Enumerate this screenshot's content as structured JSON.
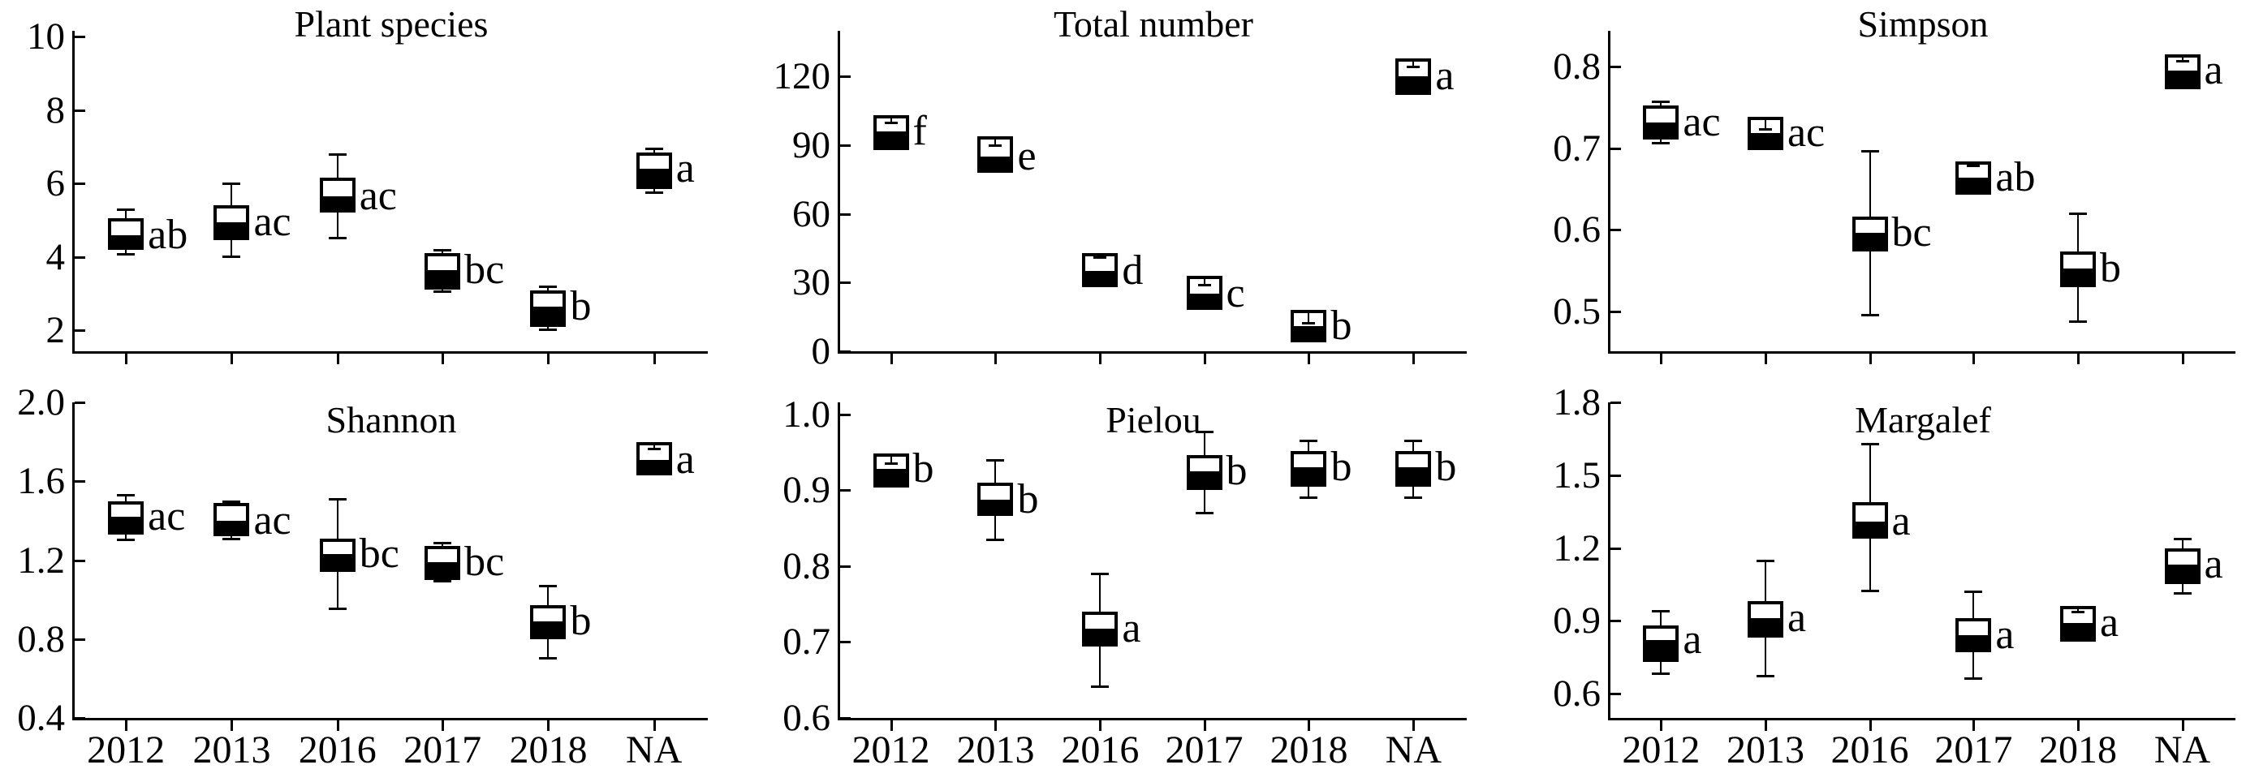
{
  "figure": {
    "background": "#ffffff",
    "ink": "#000000",
    "categories": [
      "2012",
      "2013",
      "2016",
      "2017",
      "2018",
      "NA"
    ]
  },
  "chart_data": [
    {
      "type": "box",
      "title": "Plant species",
      "categories": [
        "2012",
        "2013",
        "2016",
        "2017",
        "2018",
        "NA"
      ],
      "ylim": [
        1.43,
        10.16
      ],
      "yticks": [
        "2",
        "4",
        "6",
        "8",
        "10"
      ],
      "show_xticklabels": false,
      "grid": false,
      "boxes": [
        {
          "category": "2012",
          "low": 4.05,
          "q1": 4.2,
          "median": 4.6,
          "q3": 5.05,
          "high": 5.3,
          "sig": "ab"
        },
        {
          "category": "2013",
          "low": 4.0,
          "q1": 4.45,
          "median": 4.95,
          "q3": 5.4,
          "high": 6.0,
          "sig": "ac"
        },
        {
          "category": "2016",
          "low": 4.5,
          "q1": 5.2,
          "median": 5.65,
          "q3": 6.15,
          "high": 6.8,
          "sig": "ac"
        },
        {
          "category": "2017",
          "low": 3.05,
          "q1": 3.1,
          "median": 3.65,
          "q3": 4.1,
          "high": 4.2,
          "sig": "bc"
        },
        {
          "category": "2018",
          "low": 2.0,
          "q1": 2.1,
          "median": 2.65,
          "q3": 3.08,
          "high": 3.2,
          "sig": "b"
        },
        {
          "category": "NA",
          "low": 5.74,
          "q1": 5.85,
          "median": 6.4,
          "q3": 6.84,
          "high": 6.95,
          "sig": "a"
        }
      ]
    },
    {
      "type": "box",
      "title": "Total number",
      "categories": [
        "2012",
        "2013",
        "2016",
        "2017",
        "2018",
        "NA"
      ],
      "ylim": [
        0,
        140
      ],
      "yticks": [
        "0",
        "30",
        "60",
        "90",
        "120"
      ],
      "show_xticklabels": false,
      "grid": false,
      "boxes": [
        {
          "category": "2012",
          "low": null,
          "q1": 88,
          "median": 96,
          "q3": 103,
          "high": 100,
          "sig": "f"
        },
        {
          "category": "2013",
          "low": null,
          "q1": 78,
          "median": 85,
          "q3": 94,
          "high": 90,
          "sig": "e"
        },
        {
          "category": "2016",
          "low": null,
          "q1": 28,
          "median": 35,
          "q3": 43,
          "high": 41,
          "sig": "d"
        },
        {
          "category": "2017",
          "low": null,
          "q1": 18,
          "median": 25,
          "q3": 33,
          "high": 29,
          "sig": "c"
        },
        {
          "category": "2018",
          "low": null,
          "q1": 4,
          "median": 11,
          "q3": 18,
          "high": 12.5,
          "sig": "b"
        },
        {
          "category": "NA",
          "low": null,
          "q1": 112,
          "median": 120,
          "q3": 128,
          "high": 124.5,
          "sig": "a"
        }
      ]
    },
    {
      "type": "box",
      "title": "Simpson",
      "categories": [
        "2012",
        "2013",
        "2016",
        "2017",
        "2018",
        "NA"
      ],
      "ylim": [
        0.451,
        0.844
      ],
      "yticks": [
        "0.5",
        "0.6",
        "0.7",
        "0.8"
      ],
      "show_xticklabels": false,
      "grid": false,
      "boxes": [
        {
          "category": "2012",
          "low": 0.706,
          "q1": 0.711,
          "median": 0.732,
          "q3": 0.752,
          "high": 0.757,
          "sig": "ac"
        },
        {
          "category": "2013",
          "low": null,
          "q1": 0.698,
          "median": 0.719,
          "q3": 0.739,
          "high": 0.724,
          "sig": "ac"
        },
        {
          "category": "2016",
          "low": 0.495,
          "q1": 0.573,
          "median": 0.596,
          "q3": 0.616,
          "high": 0.697,
          "sig": "bc"
        },
        {
          "category": "2017",
          "low": null,
          "q1": 0.643,
          "median": 0.664,
          "q3": 0.684,
          "high": 0.679,
          "sig": "ab"
        },
        {
          "category": "2018",
          "low": 0.487,
          "q1": 0.53,
          "median": 0.552,
          "q3": 0.573,
          "high": 0.62,
          "sig": "b"
        },
        {
          "category": "NA",
          "low": null,
          "q1": 0.772,
          "median": 0.795,
          "q3": 0.815,
          "high": 0.807,
          "sig": "a"
        }
      ]
    },
    {
      "type": "box",
      "title": "Shannon",
      "categories": [
        "2012",
        "2013",
        "2016",
        "2017",
        "2018",
        "NA"
      ],
      "ylim": [
        0.4,
        2.0
      ],
      "yticks": [
        "0.4",
        "0.8",
        "1.2",
        "1.6",
        "2.0"
      ],
      "show_xticklabels": true,
      "grid": false,
      "boxes": [
        {
          "category": "2012",
          "low": 1.3,
          "q1": 1.33,
          "median": 1.42,
          "q3": 1.5,
          "high": 1.53,
          "sig": "ac"
        },
        {
          "category": "2013",
          "low": 1.305,
          "q1": 1.32,
          "median": 1.4,
          "q3": 1.49,
          "high": 1.5,
          "sig": "ac"
        },
        {
          "category": "2016",
          "low": 0.95,
          "q1": 1.14,
          "median": 1.23,
          "q3": 1.31,
          "high": 1.51,
          "sig": "bc"
        },
        {
          "category": "2017",
          "low": 1.09,
          "q1": 1.1,
          "median": 1.19,
          "q3": 1.27,
          "high": 1.29,
          "sig": "bc"
        },
        {
          "category": "2018",
          "low": 0.7,
          "q1": 0.8,
          "median": 0.89,
          "q3": 0.97,
          "high": 1.07,
          "sig": "b"
        },
        {
          "category": "NA",
          "low": null,
          "q1": 1.63,
          "median": 1.71,
          "q3": 1.8,
          "high": 1.765,
          "sig": "a"
        }
      ]
    },
    {
      "type": "box",
      "title": "Pielou",
      "categories": [
        "2012",
        "2013",
        "2016",
        "2017",
        "2018",
        "NA"
      ],
      "ylim": [
        0.6,
        1.016
      ],
      "yticks": [
        "0.6",
        "0.7",
        "0.8",
        "0.9",
        "1.0"
      ],
      "show_xticklabels": true,
      "grid": false,
      "boxes": [
        {
          "category": "2012",
          "low": null,
          "q1": 0.904,
          "median": 0.928,
          "q3": 0.949,
          "high": 0.936,
          "sig": "b"
        },
        {
          "category": "2013",
          "low": 0.834,
          "q1": 0.866,
          "median": 0.888,
          "q3": 0.91,
          "high": 0.94,
          "sig": "b"
        },
        {
          "category": "2016",
          "low": 0.641,
          "q1": 0.694,
          "median": 0.718,
          "q3": 0.74,
          "high": 0.79,
          "sig": "a"
        },
        {
          "category": "2017",
          "low": 0.869,
          "q1": 0.901,
          "median": 0.925,
          "q3": 0.947,
          "high": 0.978,
          "sig": "b"
        },
        {
          "category": "2018",
          "low": 0.89,
          "q1": 0.905,
          "median": 0.93,
          "q3": 0.952,
          "high": 0.966,
          "sig": "b"
        },
        {
          "category": "NA",
          "low": 0.89,
          "q1": 0.905,
          "median": 0.93,
          "q3": 0.952,
          "high": 0.966,
          "sig": "b"
        }
      ]
    },
    {
      "type": "box",
      "title": "Margalef",
      "categories": [
        "2012",
        "2013",
        "2016",
        "2017",
        "2018",
        "NA"
      ],
      "ylim": [
        0.5,
        1.8
      ],
      "yticks": [
        "0.6",
        "0.9",
        "1.2",
        "1.5",
        "1.8"
      ],
      "show_xticklabels": true,
      "grid": false,
      "boxes": [
        {
          "category": "2012",
          "low": 0.68,
          "q1": 0.73,
          "median": 0.82,
          "q3": 0.88,
          "high": 0.94,
          "sig": "a"
        },
        {
          "category": "2013",
          "low": 0.67,
          "q1": 0.83,
          "median": 0.91,
          "q3": 0.98,
          "high": 1.15,
          "sig": "a"
        },
        {
          "category": "2016",
          "low": 1.02,
          "q1": 1.24,
          "median": 1.31,
          "q3": 1.39,
          "high": 1.63,
          "sig": "a"
        },
        {
          "category": "2017",
          "low": 0.66,
          "q1": 0.77,
          "median": 0.84,
          "q3": 0.91,
          "high": 1.02,
          "sig": "a"
        },
        {
          "category": "2018",
          "low": null,
          "q1": 0.815,
          "median": 0.89,
          "q3": 0.96,
          "high": 0.937,
          "sig": "a"
        },
        {
          "category": "NA",
          "low": 1.01,
          "q1": 1.05,
          "median": 1.13,
          "q3": 1.2,
          "high": 1.24,
          "sig": "a"
        }
      ]
    }
  ]
}
